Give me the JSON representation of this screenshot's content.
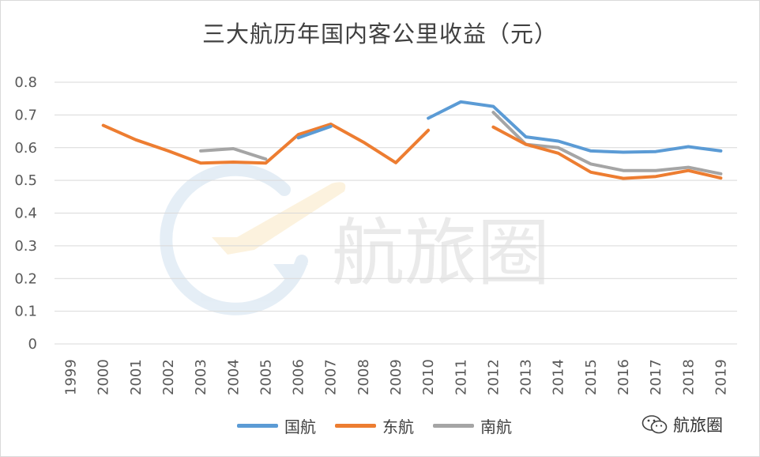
{
  "chart_data": {
    "type": "line",
    "title": "三大航历年国内客公里收益（元）",
    "xlabel": "",
    "ylabel": "",
    "ylim": [
      0,
      0.8
    ],
    "yticks": [
      "0",
      "0.1",
      "0.2",
      "0.3",
      "0.4",
      "0.5",
      "0.6",
      "0.7",
      "0.8"
    ],
    "categories": [
      "1999",
      "2000",
      "2001",
      "2002",
      "2003",
      "2004",
      "2005",
      "2006",
      "2007",
      "2008",
      "2009",
      "2010",
      "2011",
      "2012",
      "2013",
      "2014",
      "2015",
      "2016",
      "2017",
      "2018",
      "2019"
    ],
    "grid": true,
    "legend_position": "bottom",
    "series": [
      {
        "name": "国航",
        "color": "#5b9bd5",
        "values": [
          null,
          null,
          null,
          null,
          null,
          null,
          null,
          0.63,
          0.665,
          null,
          null,
          0.69,
          0.74,
          0.726,
          0.633,
          0.62,
          0.59,
          0.586,
          0.588,
          0.603,
          0.59
        ]
      },
      {
        "name": "东航",
        "color": "#ed7d31",
        "values": [
          null,
          0.668,
          0.624,
          0.59,
          0.553,
          0.556,
          0.553,
          0.64,
          0.672,
          0.617,
          0.554,
          0.653,
          null,
          0.663,
          0.61,
          0.583,
          0.525,
          0.506,
          0.512,
          0.53,
          0.507
        ]
      },
      {
        "name": "南航",
        "color": "#a5a5a5",
        "values": [
          null,
          null,
          null,
          null,
          0.59,
          0.597,
          0.565,
          null,
          null,
          null,
          null,
          null,
          null,
          0.708,
          0.61,
          0.6,
          0.55,
          0.53,
          0.53,
          0.54,
          0.52
        ]
      }
    ]
  },
  "watermark": {
    "text": "航旅圈"
  },
  "brand": {
    "icon": "wechat-icon",
    "text": "航旅圈"
  }
}
